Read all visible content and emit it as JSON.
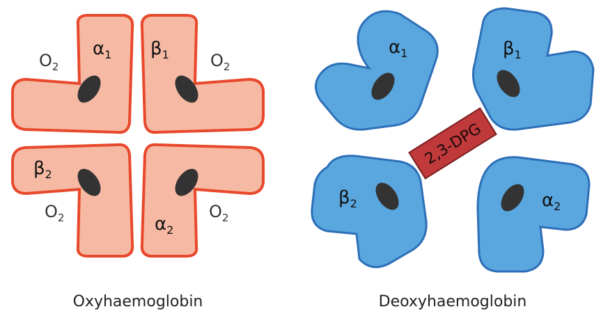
{
  "colors": {
    "oxy_fill": "#f6b9a3",
    "oxy_stroke": "#e8482b",
    "deoxy_fill": "#5aa6de",
    "deoxy_stroke": "#2d6fb8",
    "heme": "#333333",
    "dpg_fill": "#c0393b",
    "dpg_stroke": "#7a1f20"
  },
  "oxy": {
    "caption": "Oxyhaemoglobin",
    "subunits": [
      {
        "greek": "α",
        "sub": "1",
        "o2": "O",
        "o2_sub": "2"
      },
      {
        "greek": "β",
        "sub": "1",
        "o2": "O",
        "o2_sub": "2"
      },
      {
        "greek": "β",
        "sub": "2",
        "o2": "O",
        "o2_sub": "2"
      },
      {
        "greek": "α",
        "sub": "2",
        "o2": "O",
        "o2_sub": "2"
      }
    ]
  },
  "deoxy": {
    "caption": "Deoxyhaemoglobin",
    "subunits": [
      {
        "greek": "α",
        "sub": "1"
      },
      {
        "greek": "β",
        "sub": "1"
      },
      {
        "greek": "β",
        "sub": "2"
      },
      {
        "greek": "α",
        "sub": "2"
      }
    ],
    "effector": "2,3-DPG"
  }
}
